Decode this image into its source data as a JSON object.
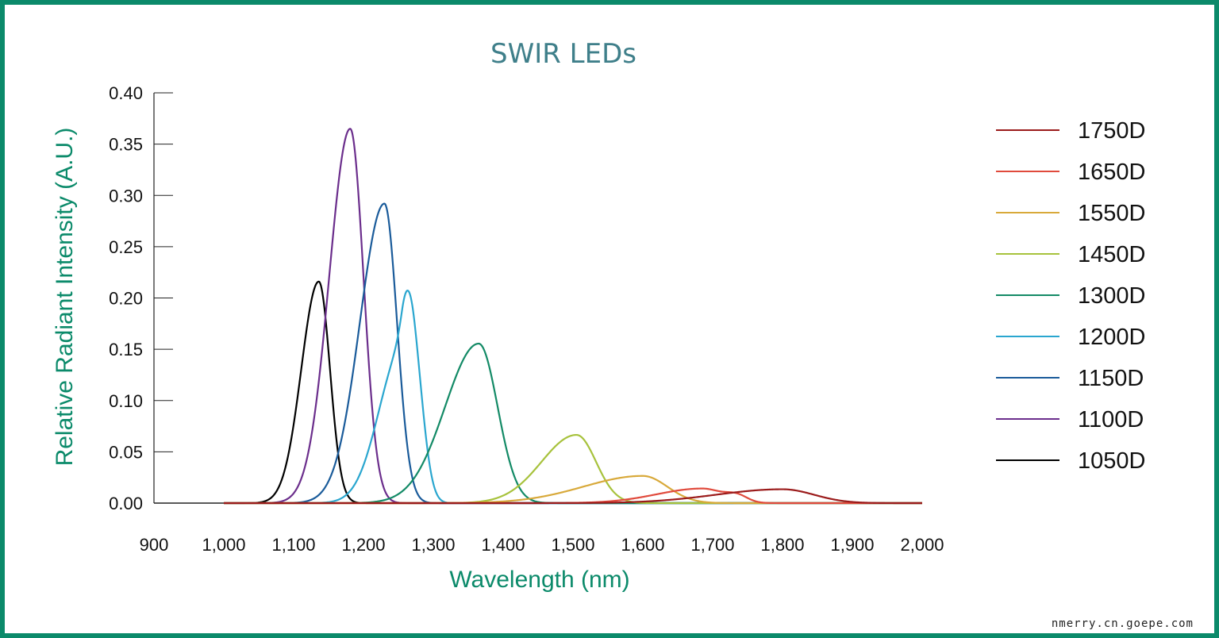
{
  "chart_data": {
    "type": "line",
    "title": "SWIR LEDs",
    "xlabel": "Wavelength (nm)",
    "ylabel": "Relative Radiant Intensity (A.U.)",
    "xlim": [
      900,
      2000
    ],
    "ylim": [
      0,
      0.4
    ],
    "x_ticks": [
      900,
      1000,
      1100,
      1200,
      1300,
      1400,
      1500,
      1600,
      1700,
      1800,
      1900,
      2000
    ],
    "x_tick_labels": [
      "900",
      "1,000",
      "1,100",
      "1,200",
      "1,300",
      "1,400",
      "1,500",
      "1,600",
      "1,700",
      "1,800",
      "1,900",
      "2,000"
    ],
    "y_ticks": [
      0,
      0.05,
      0.1,
      0.15,
      0.2,
      0.25,
      0.3,
      0.35,
      0.4
    ],
    "y_tick_labels": [
      "0.00",
      "0.05",
      "0.10",
      "0.15",
      "0.20",
      "0.25",
      "0.30",
      "0.35",
      "0.40"
    ],
    "grid": false,
    "legend_position": "right",
    "series": [
      {
        "name": "1750D",
        "color": "#9b1b1b",
        "peaks": [
          {
            "center": 1800,
            "amp": 0.0135,
            "sl": 95,
            "sr": 45
          }
        ]
      },
      {
        "name": "1650D",
        "color": "#e04a3c",
        "peaks": [
          {
            "center": 1685,
            "amp": 0.0142,
            "sl": 65,
            "sr": 30
          },
          {
            "center": 1735,
            "amp": 0.006,
            "sl": 15,
            "sr": 15
          }
        ]
      },
      {
        "name": "1550D",
        "color": "#d8a93a",
        "peaks": [
          {
            "center": 1600,
            "amp": 0.0265,
            "sl": 85,
            "sr": 35
          }
        ]
      },
      {
        "name": "1450D",
        "color": "#a7c23c",
        "peaks": [
          {
            "center": 1505,
            "amp": 0.0665,
            "sl": 50,
            "sr": 28
          }
        ]
      },
      {
        "name": "1300D",
        "color": "#138a66",
        "peaks": [
          {
            "center": 1365,
            "amp": 0.1555,
            "sl": 48,
            "sr": 27
          }
        ]
      },
      {
        "name": "1200D",
        "color": "#2aa6cf",
        "peaks": [
          {
            "center": 1255,
            "amp": 0.148,
            "sl": 33,
            "sr": 13
          },
          {
            "center": 1273,
            "amp": 0.12,
            "sl": 12,
            "sr": 14
          }
        ]
      },
      {
        "name": "1150D",
        "color": "#1a5b9a",
        "peaks": [
          {
            "center": 1230,
            "amp": 0.292,
            "sl": 35,
            "sr": 18
          }
        ]
      },
      {
        "name": "1100D",
        "color": "#6b2e8c",
        "peaks": [
          {
            "center": 1181,
            "amp": 0.365,
            "sl": 30,
            "sr": 19
          }
        ]
      },
      {
        "name": "1050D",
        "color": "#000000",
        "peaks": [
          {
            "center": 1136,
            "amp": 0.216,
            "sl": 25,
            "sr": 16
          }
        ],
        "x_start": 1000
      }
    ]
  },
  "watermark": "nmerry.cn.goepe.com"
}
